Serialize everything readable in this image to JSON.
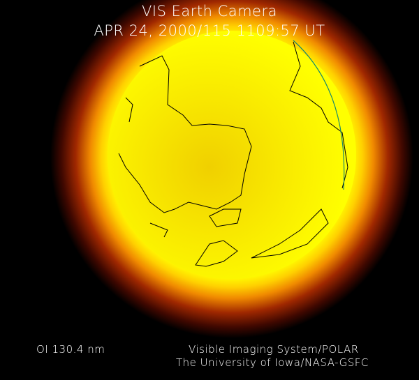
{
  "header": {
    "title": "VIS Earth Camera",
    "subtitle": "APR 24, 2000/115 1109:57 UT"
  },
  "footer": {
    "wavelength": "OI  130.4 nm",
    "credit_line1": "Visible Imaging System/POLAR",
    "credit_line2": "The University of Iowa/NASA-GSFC"
  },
  "colors": {
    "background": "#000000",
    "disk": "#ffff00",
    "glow": "#ff8c00",
    "coastline": "#000000",
    "terminator": "#1a8a6a"
  }
}
